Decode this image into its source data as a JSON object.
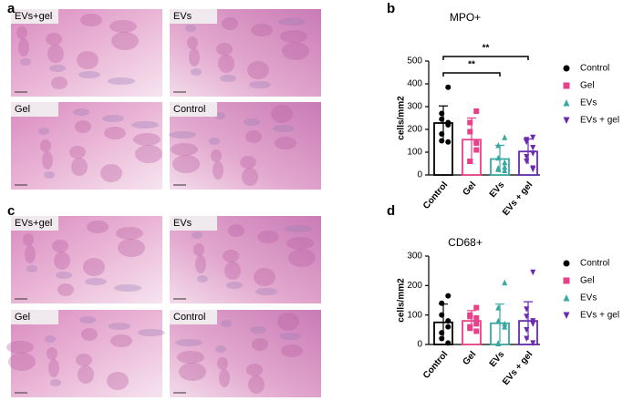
{
  "panel_labels": [
    "a",
    "b",
    "c",
    "d"
  ],
  "image_panels": [
    [
      "EVs+gel",
      "EVs",
      "Gel",
      "Control"
    ],
    [
      "EVs+gel",
      "EVs",
      "Gel",
      "Control"
    ]
  ],
  "chart_data": [
    {
      "type": "bar",
      "title": "MPO+",
      "y_label": "cells/mm2",
      "ylim": [
        0,
        500
      ],
      "yticks": [
        0,
        100,
        200,
        300,
        400,
        500
      ],
      "legend": "right",
      "series": [
        {
          "name": "Control",
          "color": "#000000",
          "marker": "circle",
          "value": 228,
          "error": 75,
          "points": [
            385,
            270,
            245,
            230,
            220,
            180,
            150,
            145
          ]
        },
        {
          "name": "Gel",
          "color": "#e8418a",
          "marker": "square",
          "value": 155,
          "error": 95,
          "points": [
            280,
            230,
            190,
            140,
            110,
            60,
            60
          ]
        },
        {
          "name": "EVs",
          "color": "#3aa8a0",
          "marker": "triangle-up",
          "value": 70,
          "error": 60,
          "points": [
            165,
            130,
            75,
            55,
            35,
            30,
            25,
            20
          ]
        },
        {
          "name": "EVs + gel",
          "color": "#6a2bb0",
          "marker": "triangle-down",
          "value": 103,
          "error": 55,
          "points": [
            165,
            155,
            145,
            120,
            95,
            80,
            60,
            30,
            25
          ]
        }
      ],
      "comparisons": [
        {
          "label": "**",
          "from": 0,
          "to": 3
        },
        {
          "label": "**",
          "from": 0,
          "to": 2
        }
      ]
    },
    {
      "type": "bar",
      "title": "CD68+",
      "y_label": "cells/mm2",
      "ylim": [
        0,
        300
      ],
      "yticks": [
        0,
        100,
        200,
        300
      ],
      "legend": "right",
      "series": [
        {
          "name": "Control",
          "color": "#000000",
          "marker": "circle",
          "value": 75,
          "error": 62,
          "points": [
            165,
            140,
            100,
            80,
            60,
            40,
            20,
            5
          ]
        },
        {
          "name": "Gel",
          "color": "#e8418a",
          "marker": "square",
          "value": 80,
          "error": 35,
          "points": [
            125,
            100,
            95,
            90,
            70,
            60,
            55,
            45
          ]
        },
        {
          "name": "EVs",
          "color": "#3aa8a0",
          "marker": "triangle-up",
          "value": 72,
          "error": 65,
          "points": [
            210,
            125,
            80,
            70,
            60,
            5,
            3
          ]
        },
        {
          "name": "EVs + gel",
          "color": "#6a2bb0",
          "marker": "triangle-down",
          "value": 80,
          "error": 65,
          "points": [
            245,
            120,
            95,
            80,
            70,
            50,
            20,
            5
          ]
        }
      ]
    }
  ]
}
